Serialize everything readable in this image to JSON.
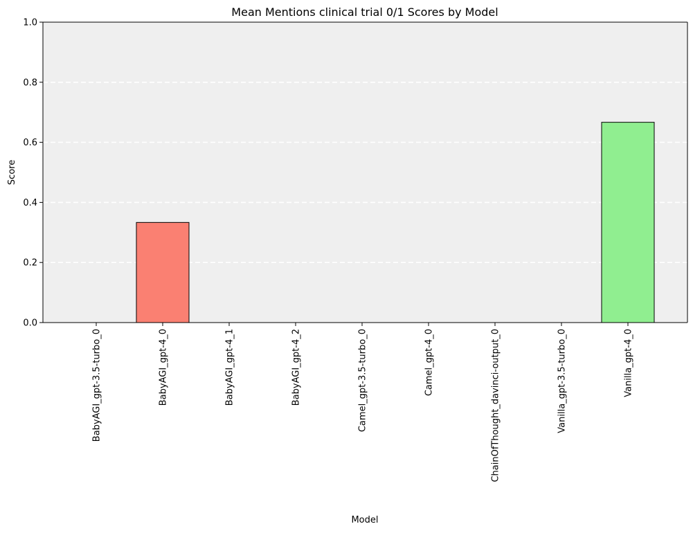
{
  "chart_data": {
    "type": "bar",
    "title": "Mean Mentions clinical trial 0/1 Scores by Model",
    "xlabel": "Model",
    "ylabel": "Score",
    "ylim": [
      0,
      1
    ],
    "yticks": [
      "0.0",
      "0.2",
      "0.4",
      "0.6",
      "0.8",
      "1.0"
    ],
    "categories": [
      "BabyAGI_gpt-3.5-turbo_0",
      "BabyAGI_gpt-4_0",
      "BabyAGI_gpt-4_1",
      "BabyAGI_gpt-4_2",
      "Camel_gpt-3.5-turbo_0",
      "Camel_gpt-4_0",
      "ChainOfThought_davinci-output_0",
      "Vanilla_gpt-3.5-turbo_0",
      "Vanilla_gpt-4_0"
    ],
    "values": [
      0,
      0.3333,
      0,
      0,
      0,
      0,
      0,
      0,
      0.6667
    ],
    "bar_colors": [
      "#87ceeb",
      "#fa8072",
      "#87ceeb",
      "#87ceeb",
      "#87ceeb",
      "#87ceeb",
      "#87ceeb",
      "#87ceeb",
      "#90ee90"
    ],
    "plot_background": "#efefef",
    "grid": "y-axis dashed white"
  }
}
